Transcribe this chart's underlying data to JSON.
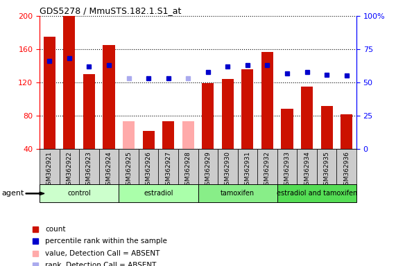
{
  "title": "GDS5278 / MmuSTS.182.1.S1_at",
  "samples": [
    "GSM362921",
    "GSM362922",
    "GSM362923",
    "GSM362924",
    "GSM362925",
    "GSM362926",
    "GSM362927",
    "GSM362928",
    "GSM362929",
    "GSM362930",
    "GSM362931",
    "GSM362932",
    "GSM362933",
    "GSM362934",
    "GSM362935",
    "GSM362936"
  ],
  "count_values": [
    175,
    200,
    130,
    165,
    null,
    62,
    73,
    null,
    119,
    124,
    136,
    157,
    88,
    115,
    92,
    82
  ],
  "count_absent": [
    null,
    null,
    null,
    null,
    73,
    null,
    null,
    73,
    null,
    null,
    null,
    null,
    null,
    null,
    null,
    null
  ],
  "rank_values": [
    66,
    68,
    62,
    63,
    null,
    53,
    53,
    null,
    58,
    62,
    63,
    63,
    57,
    58,
    56,
    55
  ],
  "rank_absent": [
    null,
    null,
    null,
    null,
    53,
    null,
    null,
    53,
    null,
    null,
    null,
    null,
    null,
    null,
    null,
    null
  ],
  "ylim_left": [
    40,
    200
  ],
  "ylim_right": [
    0,
    100
  ],
  "yticks_left": [
    40,
    80,
    120,
    160,
    200
  ],
  "yticks_right": [
    0,
    25,
    50,
    75,
    100
  ],
  "ytick_labels_right": [
    "0",
    "25",
    "50",
    "75",
    "100%"
  ],
  "groups": [
    {
      "name": "control",
      "start": 0,
      "end": 3,
      "color": "#ccffcc"
    },
    {
      "name": "estradiol",
      "start": 4,
      "end": 7,
      "color": "#aaffaa"
    },
    {
      "name": "tamoxifen",
      "start": 8,
      "end": 11,
      "color": "#88ee88"
    },
    {
      "name": "estradiol and tamoxifen",
      "start": 12,
      "end": 15,
      "color": "#55dd55"
    }
  ],
  "bar_width": 0.6,
  "count_color": "#cc1100",
  "count_absent_color": "#ffaaaa",
  "rank_color": "#0000cc",
  "rank_absent_color": "#aaaaee",
  "legend_items": [
    {
      "label": "count",
      "color": "#cc1100"
    },
    {
      "label": "percentile rank within the sample",
      "color": "#0000cc"
    },
    {
      "label": "value, Detection Call = ABSENT",
      "color": "#ffaaaa"
    },
    {
      "label": "rank, Detection Call = ABSENT",
      "color": "#aaaaee"
    }
  ],
  "xtick_bg_color": "#cccccc",
  "agent_label": "agent"
}
